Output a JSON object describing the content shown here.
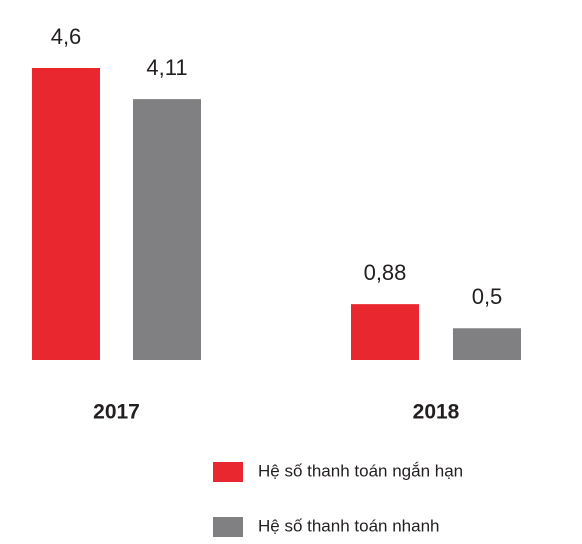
{
  "chart_data": {
    "type": "bar",
    "categories": [
      "2017",
      "2018"
    ],
    "series": [
      {
        "name": "Hệ số thanh toán ngắn hạn",
        "color": "#e8282e",
        "values": [
          4.6,
          0.88
        ],
        "value_labels": [
          "4,6",
          "0,88"
        ]
      },
      {
        "name": "Hệ số thanh toán nhanh",
        "color": "#808083",
        "values": [
          4.11,
          0.5
        ],
        "value_labels": [
          "4,11",
          "0,5"
        ]
      }
    ],
    "grid": false
  }
}
